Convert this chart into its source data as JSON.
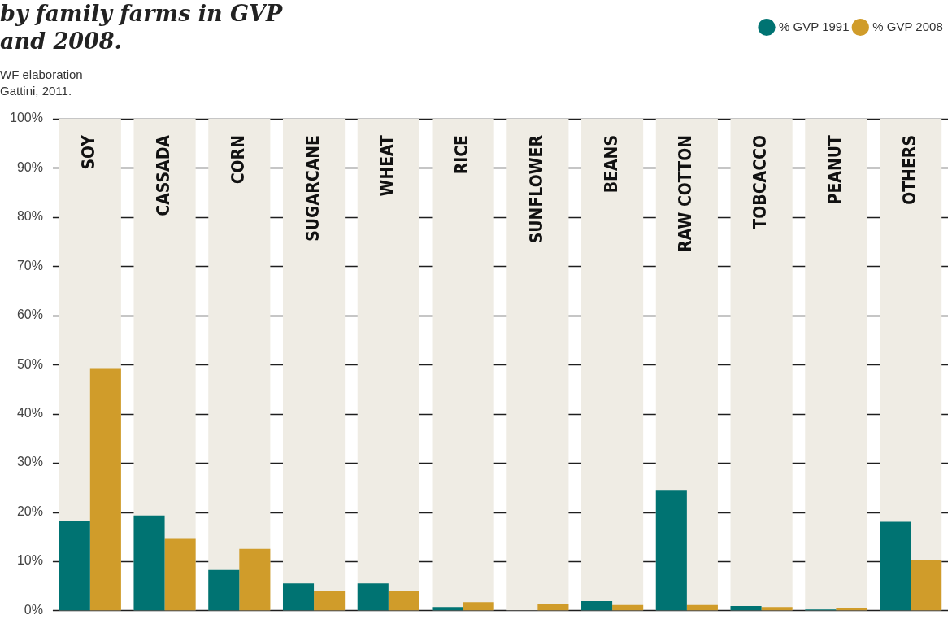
{
  "chart_data": {
    "type": "bar",
    "title": "by family farms in GVP\nand 2008.",
    "annotations": [
      "WF elaboration\nGattini, 2011."
    ],
    "categories": [
      "SOY",
      "CASSADA",
      "CORN",
      "SUGARCANE",
      "WHEAT",
      "RICE",
      "SUNFLOWER",
      "BEANS",
      "RAW COTTON",
      "TOBCACCO",
      "PEANUT",
      "OTHERS"
    ],
    "series": [
      {
        "color": "#efece4",
        "values": [
          100,
          100,
          100,
          100,
          100,
          100,
          100,
          100,
          100,
          100,
          100,
          100
        ]
      },
      {
        "name": "% GVP 1991",
        "color": "#007372",
        "values": [
          18.2,
          19.3,
          8.2,
          5.5,
          5.5,
          0.7,
          null,
          1.9,
          24.5,
          0.9,
          0.2,
          18.0
        ]
      },
      {
        "name": "% GVP 2008",
        "color": "#d09c2a",
        "values": [
          49.3,
          14.7,
          12.5,
          3.9,
          3.9,
          1.7,
          1.4,
          1.1,
          1.1,
          0.7,
          0.4,
          10.3
        ]
      }
    ],
    "ylim": [
      0,
      100
    ],
    "yticks": [
      {
        "value": 0,
        "label": "0%"
      },
      {
        "value": 10,
        "label": "10%"
      },
      {
        "value": 20,
        "label": "20%"
      },
      {
        "value": 30,
        "label": "30%"
      },
      {
        "value": 40,
        "label": "40%"
      },
      {
        "value": 50,
        "label": "50%"
      },
      {
        "value": 60,
        "label": "60%"
      },
      {
        "value": 70,
        "label": "70%"
      },
      {
        "value": 80,
        "label": "80%"
      },
      {
        "value": 90,
        "label": "90%"
      },
      {
        "value": 100,
        "label": "100%"
      }
    ],
    "grid": "y",
    "legend": "top right"
  }
}
